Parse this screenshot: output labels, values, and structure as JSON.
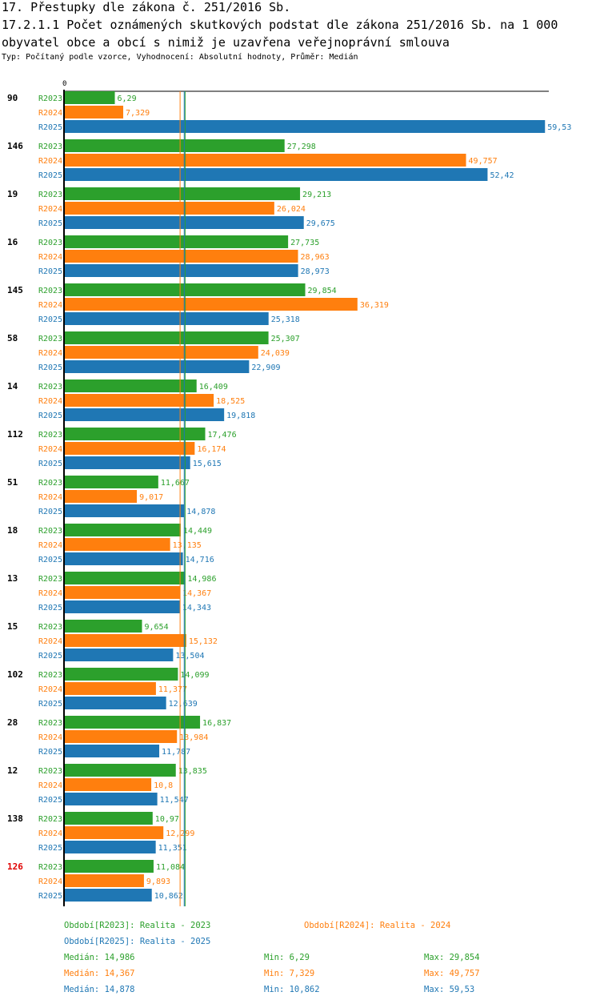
{
  "header": {
    "title1": "17. Přestupky dle zákona č. 251/2016 Sb.",
    "title2": "17.2.1.1 Počet oznámených skutkových podstat dle zákona 251/2016 Sb. na 1 000 obyvatel obce a obcí s nimiž je uzavřena veřejnoprávní smlouva",
    "subtitle": "Typ: Počítaný podle vzorce, Vyhodnocení: Absolutní hodnoty, Průměr: Medián"
  },
  "colors": {
    "R2023": "#2ca02c",
    "R2024": "#ff7f0e",
    "R2025": "#1f77b4",
    "highlight": "#e00000"
  },
  "chart_data": {
    "type": "bar",
    "orientation": "horizontal",
    "zero_label": "0",
    "xlim": [
      0,
      60
    ],
    "categories": [
      "90",
      "146",
      "19",
      "16",
      "145",
      "58",
      "14",
      "112",
      "51",
      "18",
      "13",
      "15",
      "102",
      "28",
      "12",
      "138",
      "126"
    ],
    "highlight_category": "126",
    "series": [
      {
        "name": "R2023",
        "labels": [
          "6,29",
          "27,298",
          "29,213",
          "27,735",
          "29,854",
          "25,307",
          "16,409",
          "17,476",
          "11,667",
          "14,449",
          "14,986",
          "9,654",
          "14,099",
          "16,837",
          "13,835",
          "10,97",
          "11,084"
        ],
        "values": [
          6.29,
          27.298,
          29.213,
          27.735,
          29.854,
          25.307,
          16.409,
          17.476,
          11.667,
          14.449,
          14.986,
          9.654,
          14.099,
          16.837,
          13.835,
          10.97,
          11.084
        ]
      },
      {
        "name": "R2024",
        "labels": [
          "7,329",
          "49,757",
          "26,024",
          "28,963",
          "36,319",
          "24,039",
          "18,525",
          "16,174",
          "9,017",
          "13,135",
          "14,367",
          "15,132",
          "11,377",
          "13,984",
          "10,8",
          "12,299",
          "9,893"
        ],
        "values": [
          7.329,
          49.757,
          26.024,
          28.963,
          36.319,
          24.039,
          18.525,
          16.174,
          9.017,
          13.135,
          14.367,
          15.132,
          11.377,
          13.984,
          10.8,
          12.299,
          9.893
        ]
      },
      {
        "name": "R2025",
        "labels": [
          "59,53",
          "52,42",
          "29,675",
          "28,973",
          "25,318",
          "22,909",
          "19,818",
          "15,615",
          "14,878",
          "14,716",
          "14,343",
          "13,504",
          "12,639",
          "11,787",
          "11,547",
          "11,351",
          "10,862"
        ],
        "values": [
          59.53,
          52.42,
          29.675,
          28.973,
          25.318,
          22.909,
          19.818,
          15.615,
          14.878,
          14.716,
          14.343,
          13.504,
          12.639,
          11.787,
          11.547,
          11.351,
          10.862
        ]
      }
    ],
    "median_lines": [
      14.986,
      14.367,
      14.878
    ]
  },
  "legend": {
    "r2023": "Období[R2023]: Realita - 2023",
    "r2024": "Období[R2024]: Realita - 2024",
    "r2025": "Období[R2025]: Realita - 2025"
  },
  "stats": [
    {
      "median": "Medián: 14,986",
      "min": "Min: 6,29",
      "max": "Max: 29,854"
    },
    {
      "median": "Medián: 14,367",
      "min": "Min: 7,329",
      "max": "Max: 49,757"
    },
    {
      "median": "Medián: 14,878",
      "min": "Min: 10,862",
      "max": "Max: 59,53"
    }
  ]
}
